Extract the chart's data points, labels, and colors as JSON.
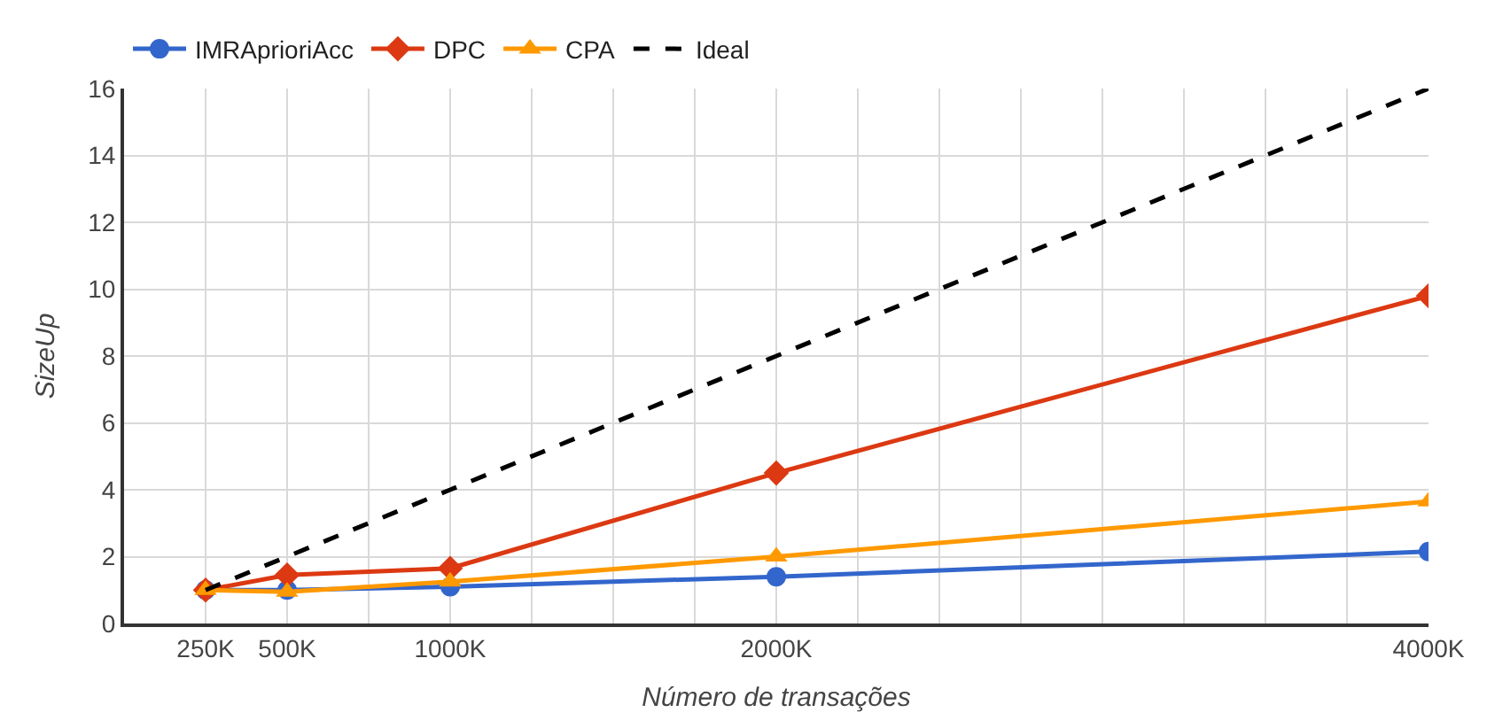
{
  "chart_data": {
    "type": "line",
    "xlabel": "Número de transações",
    "ylabel": "SizeUp",
    "x": [
      250,
      500,
      1000,
      2000,
      4000
    ],
    "xlim": [
      0,
      4000
    ],
    "xticks": [
      {
        "value": 250,
        "label": "250K"
      },
      {
        "value": 500,
        "label": "500K"
      },
      {
        "value": 750,
        "label": null
      },
      {
        "value": 1000,
        "label": "1000K"
      },
      {
        "value": 1250,
        "label": null
      },
      {
        "value": 1500,
        "label": null
      },
      {
        "value": 1750,
        "label": null
      },
      {
        "value": 2000,
        "label": "2000K"
      },
      {
        "value": 2250,
        "label": null
      },
      {
        "value": 2500,
        "label": null
      },
      {
        "value": 2750,
        "label": null
      },
      {
        "value": 3000,
        "label": null
      },
      {
        "value": 3250,
        "label": null
      },
      {
        "value": 3500,
        "label": null
      },
      {
        "value": 3750,
        "label": null
      },
      {
        "value": 4000,
        "label": "4000K"
      }
    ],
    "ylim": [
      0,
      16
    ],
    "yticks": [
      0,
      2,
      4,
      6,
      8,
      10,
      12,
      14,
      16
    ],
    "grid": true,
    "legend": "top left",
    "series": [
      {
        "name": "IMRAprioriAcc",
        "color": "#3366cc",
        "marker": "circle",
        "values": [
          1,
          1.0,
          1.1,
          1.4,
          2.15
        ]
      },
      {
        "name": "DPC",
        "color": "#dc3912",
        "marker": "diamond",
        "values": [
          1,
          1.45,
          1.65,
          4.5,
          9.8
        ]
      },
      {
        "name": "CPA",
        "color": "#ff9900",
        "marker": "triangle",
        "values": [
          1,
          0.95,
          1.25,
          2.0,
          3.65
        ]
      },
      {
        "name": "Ideal",
        "color": "#000000",
        "marker": "none",
        "line_style": "dashed",
        "values": [
          1,
          2,
          4,
          8,
          16
        ]
      }
    ]
  }
}
